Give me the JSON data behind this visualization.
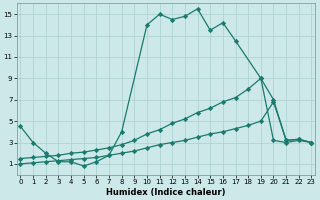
{
  "xlabel": "Humidex (Indice chaleur)",
  "bg_color": "#cde8e8",
  "line_color": "#1a7a6e",
  "grid_color": "#aacfcf",
  "line1_x": [
    0,
    1,
    2,
    3,
    4,
    5,
    6,
    7,
    8,
    10,
    11,
    12,
    13,
    14,
    15,
    16,
    17,
    19,
    20,
    21,
    22,
    23
  ],
  "line1_y": [
    4.5,
    3.0,
    2.0,
    1.2,
    1.2,
    0.8,
    1.2,
    1.8,
    4.0,
    14.0,
    15.0,
    14.5,
    14.8,
    15.5,
    13.5,
    14.2,
    12.5,
    9.0,
    3.2,
    3.0,
    3.2,
    3.0
  ],
  "line2_x": [
    0,
    1,
    2,
    3,
    4,
    5,
    6,
    7,
    8,
    9,
    10,
    11,
    12,
    13,
    14,
    15,
    16,
    17,
    18,
    19,
    20,
    21,
    22,
    23
  ],
  "line2_y": [
    1.5,
    1.6,
    1.7,
    1.8,
    2.0,
    2.1,
    2.3,
    2.5,
    2.8,
    3.2,
    3.8,
    4.2,
    4.8,
    5.2,
    5.8,
    6.2,
    6.8,
    7.2,
    8.0,
    9.0,
    7.0,
    3.2,
    3.3,
    3.0
  ],
  "line3_x": [
    0,
    1,
    2,
    3,
    4,
    5,
    6,
    7,
    8,
    9,
    10,
    11,
    12,
    13,
    14,
    15,
    16,
    17,
    18,
    19,
    20,
    21,
    22,
    23
  ],
  "line3_y": [
    1.0,
    1.1,
    1.2,
    1.3,
    1.4,
    1.5,
    1.6,
    1.8,
    2.0,
    2.2,
    2.5,
    2.8,
    3.0,
    3.2,
    3.5,
    3.8,
    4.0,
    4.3,
    4.6,
    5.0,
    6.8,
    3.2,
    3.3,
    3.0
  ],
  "xlim": [
    0,
    23
  ],
  "ylim": [
    0,
    16
  ],
  "yticks": [
    1,
    3,
    5,
    7,
    9,
    11,
    13,
    15
  ],
  "xticks": [
    0,
    1,
    2,
    3,
    4,
    5,
    6,
    7,
    8,
    9,
    10,
    11,
    12,
    13,
    14,
    15,
    16,
    17,
    18,
    19,
    20,
    21,
    22,
    23
  ]
}
